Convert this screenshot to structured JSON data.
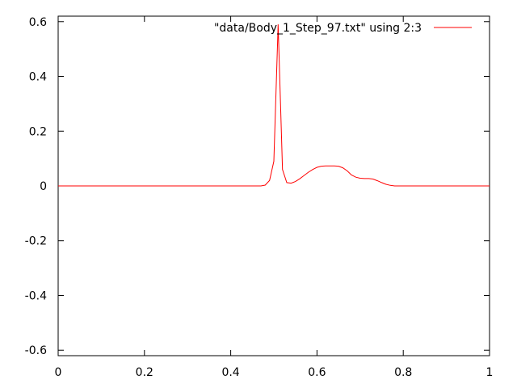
{
  "chart_data": {
    "type": "line",
    "xlim": [
      0,
      1
    ],
    "ylim": [
      -0.62,
      0.62
    ],
    "x_ticks": [
      0,
      0.2,
      0.4,
      0.6,
      0.8,
      1
    ],
    "x_tick_labels": [
      "0",
      "0.2",
      "0.4",
      "0.6",
      "0.8",
      "1"
    ],
    "y_ticks": [
      0.6,
      0.4,
      0.2,
      0,
      -0.2,
      -0.4,
      -0.6
    ],
    "y_tick_labels": [
      "0.6",
      "0.4",
      "0.2",
      "0",
      "-0.2",
      "-0.4",
      "-0.6"
    ],
    "grid": false,
    "legend_position": "top-right",
    "series": [
      {
        "name": "\"data/Body_1_Step_97.txt\" using 2:3",
        "color": "#ff0000",
        "x": [
          0,
          0.47,
          0.48,
          0.49,
          0.5,
          0.51,
          0.52,
          0.53,
          0.54,
          0.55,
          0.56,
          0.57,
          0.58,
          0.59,
          0.6,
          0.61,
          0.62,
          0.63,
          0.64,
          0.65,
          0.66,
          0.67,
          0.68,
          0.69,
          0.7,
          0.71,
          0.72,
          0.73,
          0.74,
          0.75,
          0.76,
          0.77,
          0.78,
          1
        ],
        "y": [
          0,
          0,
          0.003,
          0.02,
          0.09,
          0.59,
          0.06,
          0.012,
          0.01,
          0.016,
          0.026,
          0.038,
          0.05,
          0.06,
          0.068,
          0.072,
          0.073,
          0.073,
          0.073,
          0.072,
          0.066,
          0.055,
          0.04,
          0.032,
          0.028,
          0.027,
          0.027,
          0.025,
          0.019,
          0.012,
          0.006,
          0.002,
          0,
          0
        ]
      }
    ]
  }
}
